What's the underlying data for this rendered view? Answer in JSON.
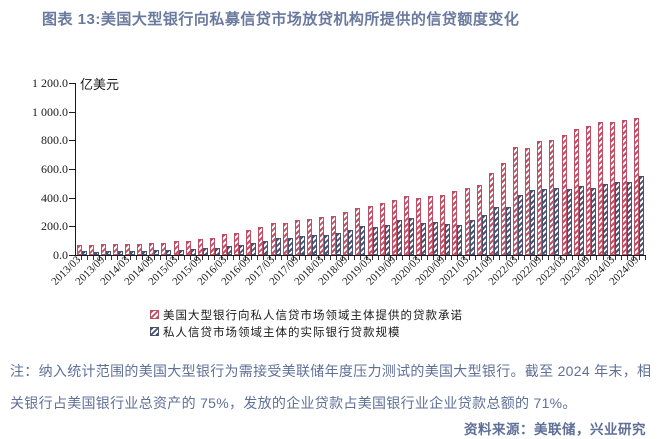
{
  "title": "图表 13:美国大型银行向私募信贷市场放贷机构所提供的信贷额度变化",
  "note": "注：纳入统计范围的美国大型银行为需接受美联储年度压力测试的美国大型银行。截至 2024 年末，相关银行占美国银行业总资产的 75%，发放的企业贷款占美国银行业企业贷款总额的 71%。",
  "source": "资料来源：美联储，兴业研究",
  "colors": {
    "title_text": "#6a7a9e",
    "note_text": "#5f7098",
    "axis": "#1a1a1a",
    "commitment_red": "#c04e64",
    "actual_navy": "#4a5170"
  },
  "chart_data": {
    "type": "bar",
    "title": "图表 13:美国大型银行向私募信贷市场放贷机构所提供的信贷额度变化",
    "unit_label": "亿美元",
    "ylim": [
      0,
      1200
    ],
    "ytick_step": 200,
    "ytick_labels": [
      "0.0",
      "200.0",
      "400.0",
      "600.0",
      "800.0",
      "1 000.0",
      "1 200.0"
    ],
    "grid": false,
    "legend_position": "bottom",
    "x": [
      "2013/03",
      "2013/06",
      "2013/09",
      "2013/12",
      "2014/03",
      "2014/06",
      "2014/09",
      "2014/12",
      "2015/03",
      "2015/06",
      "2015/09",
      "2015/12",
      "2016/03",
      "2016/06",
      "2016/09",
      "2016/12",
      "2017/03",
      "2017/06",
      "2017/09",
      "2017/12",
      "2018/03",
      "2018/06",
      "2018/09",
      "2018/12",
      "2019/03",
      "2019/06",
      "2019/09",
      "2019/12",
      "2020/03",
      "2020/06",
      "2020/09",
      "2020/12",
      "2021/03",
      "2021/06",
      "2021/09",
      "2021/12",
      "2022/03",
      "2022/06",
      "2022/09",
      "2022/12",
      "2023/03",
      "2023/06",
      "2023/09",
      "2023/12",
      "2024/03",
      "2024/06",
      "2024/09"
    ],
    "xtick_labels": [
      "2013/03",
      "2013/09",
      "2014/03",
      "2014/09",
      "2015/03",
      "2015/09",
      "2016/03",
      "2016/09",
      "2017/03",
      "2017/09",
      "2018/03",
      "2018/09",
      "2019/03",
      "2019/09",
      "2020/03",
      "2020/09",
      "2021/03",
      "2021/09",
      "2022/03",
      "2022/09",
      "2023/03",
      "2023/09",
      "2024/03",
      "2024/09"
    ],
    "series": [
      {
        "name": "美国大型银行向私人信贷市场领域主体提供的贷款承诺",
        "color": "#c04e64",
        "values": [
          70,
          70,
          80,
          75,
          80,
          75,
          85,
          85,
          95,
          100,
          115,
          120,
          145,
          150,
          175,
          195,
          225,
          220,
          245,
          250,
          265,
          270,
          300,
          330,
          345,
          360,
          385,
          415,
          400,
          415,
          420,
          445,
          470,
          490,
          570,
          640,
          750,
          745,
          795,
          800,
          835,
          880,
          900,
          925,
          930,
          945,
          955
        ]
      },
      {
        "name": "私人信贷市场领域主体的实际银行贷款规模",
        "color": "#4a5170",
        "values": [
          25,
          22,
          27,
          27,
          27,
          28,
          32,
          32,
          36,
          40,
          46,
          50,
          64,
          68,
          83,
          95,
          120,
          118,
          132,
          140,
          142,
          156,
          174,
          200,
          198,
          207,
          244,
          259,
          226,
          230,
          216,
          212,
          244,
          277,
          338,
          333,
          420,
          455,
          459,
          469,
          459,
          478,
          464,
          492,
          506,
          511,
          553
        ]
      }
    ]
  }
}
